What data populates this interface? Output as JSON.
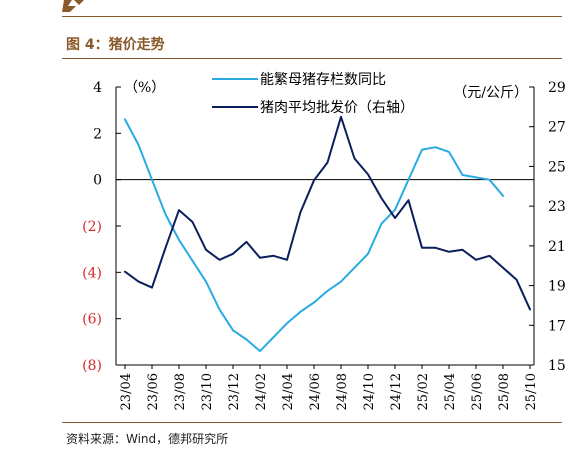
{
  "figure": {
    "label": "图 4：猪价走势",
    "source": "资料来源：Wind，德邦研究所"
  },
  "chart_data": {
    "type": "line",
    "left_unit": "（%）",
    "right_unit": "（元/公斤）",
    "x": [
      "23/04",
      "23/05",
      "23/06",
      "23/07",
      "23/08",
      "23/09",
      "23/10",
      "23/11",
      "23/12",
      "24/01",
      "24/02",
      "24/03",
      "24/04",
      "24/05",
      "24/06",
      "24/07",
      "24/08",
      "24/09",
      "24/10",
      "24/11",
      "24/12",
      "25/01",
      "25/02",
      "25/03",
      "25/04",
      "25/05",
      "25/06",
      "25/07",
      "25/08",
      "25/09",
      "25/10"
    ],
    "x_tick_labels": [
      "23/04",
      "23/06",
      "23/08",
      "23/10",
      "23/12",
      "24/02",
      "24/04",
      "24/06",
      "24/08",
      "24/10",
      "24/12",
      "25/02",
      "25/04",
      "25/06",
      "25/08",
      "25/10"
    ],
    "y_left": {
      "lim": [
        -8,
        4
      ],
      "ticks": [
        4,
        2,
        0,
        -2,
        -4,
        -6,
        -8
      ],
      "tick_labels": [
        "4",
        "2",
        "0",
        "(2)",
        "(4)",
        "(6)",
        "(8)"
      ],
      "negative_color": "#d62728"
    },
    "y_right": {
      "lim": [
        15,
        29
      ],
      "ticks": [
        29,
        27,
        25,
        23,
        21,
        19,
        17,
        15
      ],
      "tick_labels": [
        "29",
        "27",
        "25",
        "23",
        "21",
        "19",
        "17",
        "15"
      ]
    },
    "series": [
      {
        "name": "能繁母猪存栏数同比",
        "axis": "left",
        "color": "#29abe2",
        "values": [
          2.6,
          1.5,
          0.0,
          -1.5,
          -2.6,
          -3.5,
          -4.4,
          -5.6,
          -6.5,
          -6.9,
          -7.4,
          -6.8,
          -6.2,
          -5.7,
          -5.3,
          -4.8,
          -4.4,
          -3.8,
          -3.2,
          -1.9,
          -1.3,
          0.0,
          1.3,
          1.4,
          1.2,
          0.2,
          0.1,
          0.0,
          -0.7,
          null,
          null
        ]
      },
      {
        "name": "猪肉平均批发价（右轴）",
        "axis": "right",
        "color": "#0b1f5c",
        "values": [
          19.7,
          19.2,
          18.9,
          20.9,
          22.8,
          22.2,
          20.8,
          20.3,
          20.6,
          21.2,
          20.4,
          20.5,
          20.3,
          22.7,
          24.3,
          25.2,
          27.5,
          25.4,
          24.6,
          23.4,
          22.4,
          23.3,
          20.9,
          20.9,
          20.7,
          20.8,
          20.3,
          20.5,
          19.9,
          19.3,
          17.8
        ]
      }
    ]
  }
}
